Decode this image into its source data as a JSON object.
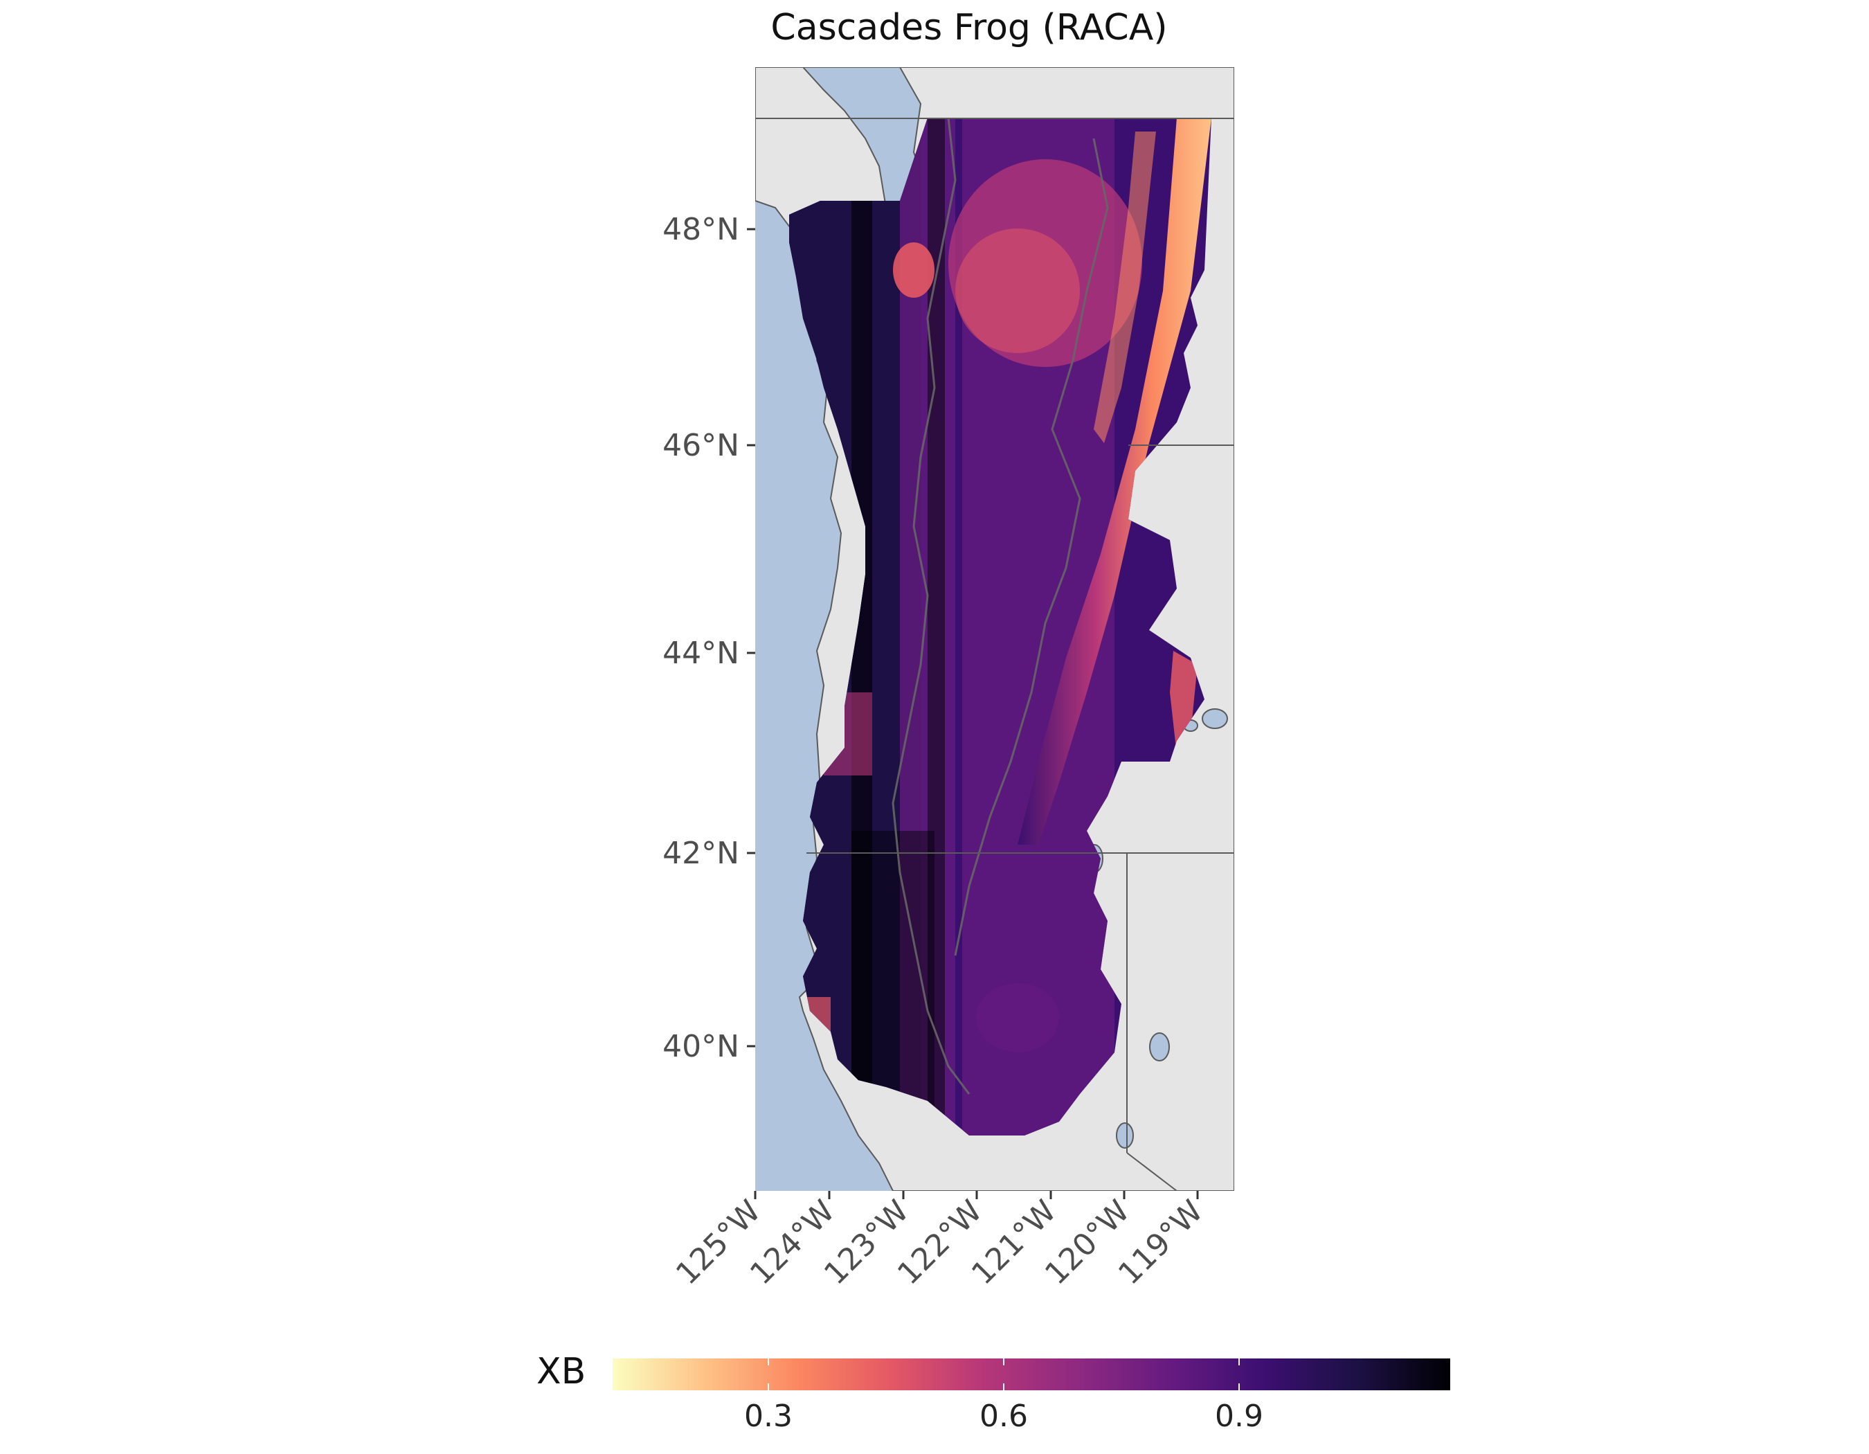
{
  "map": {
    "title": "Cascades Frog (RACA)",
    "x_axis_labels": [
      "125°W",
      "124°W",
      "123°W",
      "122°W",
      "121°W",
      "120°W",
      "119°W"
    ],
    "y_axis_labels": [
      "48°N",
      "46°N",
      "44°N",
      "42°N",
      "40°N"
    ],
    "colors": {
      "water": "#b0c4de",
      "land": "#e5e5e5",
      "borders": "#5a5a5a"
    }
  },
  "legend": {
    "title": "XB",
    "tick_labels": [
      "0.3",
      "0.6",
      "0.9"
    ],
    "colormap": "magma (reversed)",
    "gradient_colors": [
      "#fcfdbf",
      "#fec287",
      "#fb8861",
      "#e55964",
      "#b73779",
      "#8c2981",
      "#641a80",
      "#3b0f70",
      "#1c1044",
      "#000004"
    ]
  }
}
